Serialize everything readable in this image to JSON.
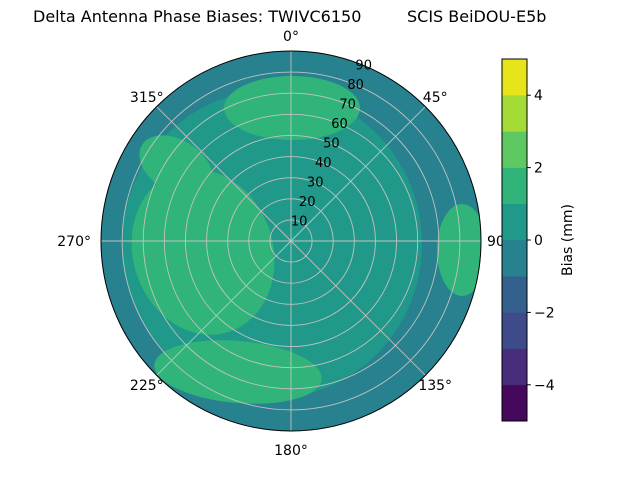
{
  "background": "#ffffff",
  "title": {
    "left": "Delta Antenna Phase Biases: TWIVC6150",
    "right": "SCIS BeiDOU-E5b"
  },
  "chart_data": {
    "type": "heatmap",
    "projection": "polar",
    "title_left": "Delta Antenna Phase Biases: TWIVC6150",
    "title_right": "SCIS BeiDOU-E5b",
    "azimuth_direction": "clockwise_from_north",
    "azimuth_ticks": [
      {
        "deg": 0,
        "label": "0°"
      },
      {
        "deg": 45,
        "label": "45°"
      },
      {
        "deg": 90,
        "label": "90"
      },
      {
        "deg": 135,
        "label": "135°"
      },
      {
        "deg": 180,
        "label": "180°"
      },
      {
        "deg": 225,
        "label": "225°"
      },
      {
        "deg": 270,
        "label": "270°"
      },
      {
        "deg": 315,
        "label": "315°"
      }
    ],
    "radial_ticks": {
      "values": [
        10,
        20,
        30,
        40,
        50,
        60,
        70,
        80,
        90
      ],
      "max": 90,
      "range": [
        0,
        90
      ],
      "label_angle_deg": 22.5
    },
    "grid_color": "#c2c2c2",
    "band_colors": {
      "band_m1_0": "#27818e",
      "band_0_1": "#20998a",
      "band_1_2": "#30b47a"
    },
    "fill_bands_visible": [
      {
        "bias_range": "-1 to 0 mm",
        "color": "#27818e",
        "where": "outer rim and eastern interior sector"
      },
      {
        "bias_range": "0 to 1 mm",
        "color": "#20998a",
        "where": "most of the interior"
      },
      {
        "bias_range": "1 to 2 mm",
        "color": "#30b47a",
        "where": "west of center, north near rim, south-southwest, small patch at east rim and upper-left"
      }
    ],
    "colorbar": {
      "label": "Bias (mm)",
      "min": -5,
      "max": 5,
      "colormap": "viridis",
      "tick_values": [
        4,
        2,
        0,
        -2,
        -4
      ],
      "tick_labels": [
        "4",
        "2",
        "0",
        "−2",
        "−4"
      ],
      "bands": [
        {
          "from": -5,
          "to": -4,
          "color": "#46085c"
        },
        {
          "from": -4,
          "to": -3,
          "color": "#472d7b"
        },
        {
          "from": -3,
          "to": -2,
          "color": "#3e4a89"
        },
        {
          "from": -2,
          "to": -1,
          "color": "#34608d"
        },
        {
          "from": -1,
          "to": 0,
          "color": "#27818e"
        },
        {
          "from": 0,
          "to": 1,
          "color": "#20998a"
        },
        {
          "from": 1,
          "to": 2,
          "color": "#30b47a"
        },
        {
          "from": 2,
          "to": 3,
          "color": "#5ec962"
        },
        {
          "from": 3,
          "to": 4,
          "color": "#a5db36"
        },
        {
          "from": 4,
          "to": 5,
          "color": "#e7e419"
        }
      ]
    }
  }
}
